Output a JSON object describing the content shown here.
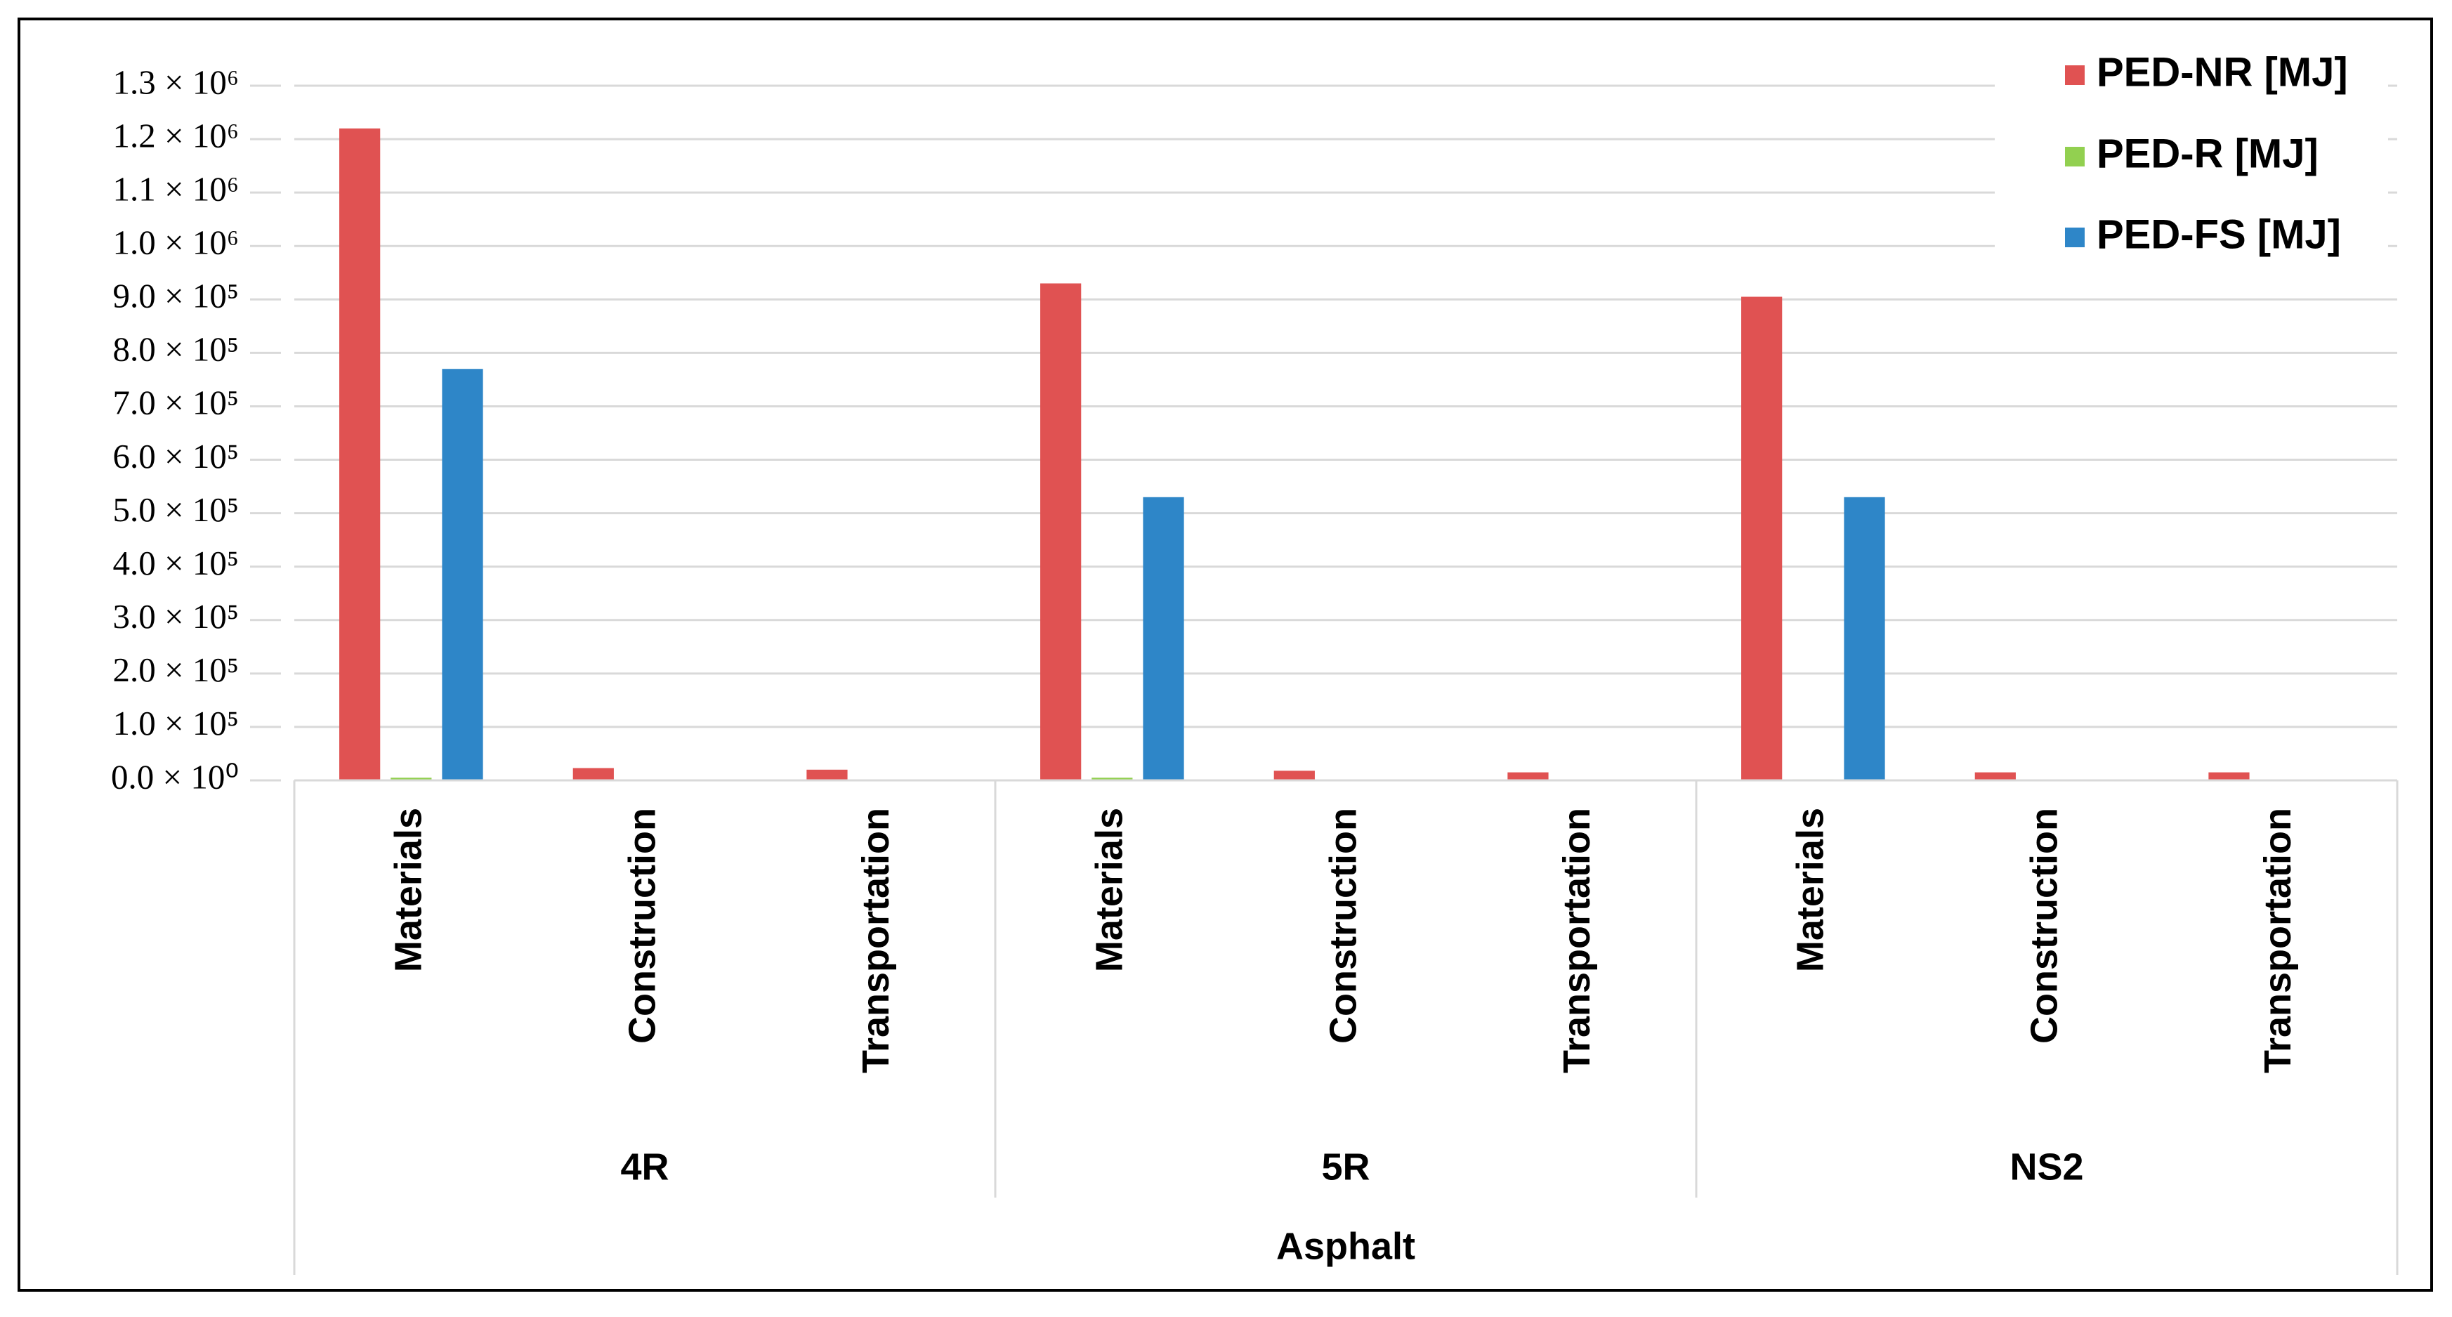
{
  "chart_data": {
    "type": "bar",
    "categories": [
      "Materials",
      "Construction",
      "Transportation",
      "Materials",
      "Construction",
      "Transportation",
      "Materials",
      "Construction",
      "Transportation"
    ],
    "groups": [
      "4R",
      "5R",
      "NS2"
    ],
    "group_label": "Asphalt",
    "series": [
      {
        "name": "PED-NR [MJ]",
        "color": "#e05252",
        "values": [
          1220000,
          23000,
          20000,
          930000,
          18000,
          15000,
          905000,
          15000,
          15000
        ]
      },
      {
        "name": "PED-R [MJ]",
        "color": "#92d050",
        "values": [
          5000,
          0,
          0,
          5000,
          0,
          0,
          2000,
          0,
          0
        ]
      },
      {
        "name": "PED-FS [MJ]",
        "color": "#2e86c8",
        "values": [
          770000,
          0,
          0,
          530000,
          0,
          0,
          530000,
          0,
          0
        ]
      }
    ],
    "ylim": [
      0,
      1300000
    ],
    "yticks": [
      {
        "value": 0,
        "label": "0.0 × 10⁰"
      },
      {
        "value": 100000,
        "label": "1.0 × 10⁵"
      },
      {
        "value": 200000,
        "label": "2.0 × 10⁵"
      },
      {
        "value": 300000,
        "label": "3.0 × 10⁵"
      },
      {
        "value": 400000,
        "label": "4.0 × 10⁵"
      },
      {
        "value": 500000,
        "label": "5.0 × 10⁵"
      },
      {
        "value": 600000,
        "label": "6.0 × 10⁵"
      },
      {
        "value": 700000,
        "label": "7.0 × 10⁵"
      },
      {
        "value": 800000,
        "label": "8.0 × 10⁵"
      },
      {
        "value": 900000,
        "label": "9.0 × 10⁵"
      },
      {
        "value": 1000000,
        "label": "1.0 × 10⁶"
      },
      {
        "value": 1100000,
        "label": "1.1 × 10⁶"
      },
      {
        "value": 1200000,
        "label": "1.2 × 10⁶"
      },
      {
        "value": 1300000,
        "label": "1.3 × 10⁶"
      }
    ],
    "grid": true,
    "legend": "top-right"
  }
}
